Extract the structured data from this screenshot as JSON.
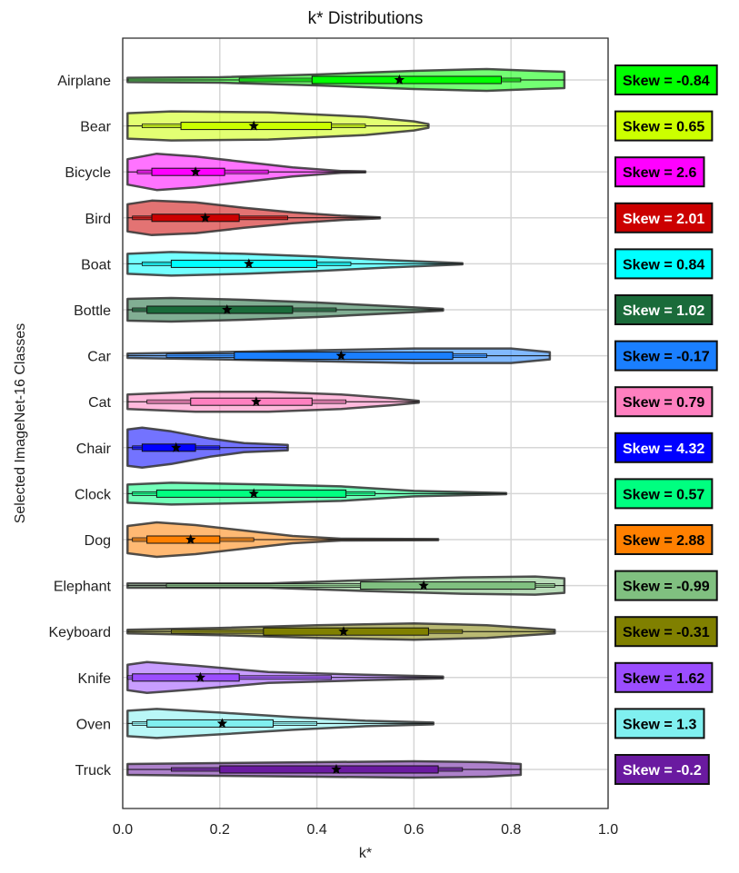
{
  "chart_data": {
    "type": "violin",
    "title": "k* Distributions",
    "xlabel": "k*",
    "ylabel": "Selected ImageNet-16 Classes",
    "xlim": [
      0.0,
      1.0
    ],
    "xticks": [
      "0.0",
      "0.2",
      "0.4",
      "0.6",
      "0.8",
      "1.0"
    ],
    "grid": true,
    "mean_marker": "star",
    "classes": [
      {
        "name": "Airplane",
        "color": "#00ff00",
        "text_color": "#000000",
        "skew_label": "Skew = -0.84",
        "min": 0.01,
        "whisker_low": 0.24,
        "q1": 0.39,
        "q3": 0.78,
        "whisker_high": 0.82,
        "max": 0.91,
        "mean": 0.57,
        "density": [
          [
            0.01,
            0.12
          ],
          [
            0.2,
            0.15
          ],
          [
            0.4,
            0.3
          ],
          [
            0.6,
            0.5
          ],
          [
            0.75,
            0.6
          ],
          [
            0.85,
            0.5
          ],
          [
            0.91,
            0.45
          ]
        ]
      },
      {
        "name": "Bear",
        "color": "#ccff00",
        "text_color": "#000000",
        "skew_label": "Skew = 0.65",
        "min": 0.01,
        "whisker_low": 0.04,
        "q1": 0.12,
        "q3": 0.43,
        "whisker_high": 0.5,
        "max": 0.63,
        "mean": 0.27,
        "density": [
          [
            0.01,
            0.7
          ],
          [
            0.1,
            0.8
          ],
          [
            0.3,
            0.75
          ],
          [
            0.5,
            0.5
          ],
          [
            0.6,
            0.25
          ],
          [
            0.63,
            0.1
          ]
        ]
      },
      {
        "name": "Bicycle",
        "color": "#ff00ff",
        "text_color": "#000000",
        "skew_label": "Skew = 2.6",
        "min": 0.01,
        "whisker_low": 0.03,
        "q1": 0.06,
        "q3": 0.21,
        "whisker_high": 0.3,
        "max": 0.5,
        "mean": 0.15,
        "density": [
          [
            0.01,
            0.7
          ],
          [
            0.07,
            1.0
          ],
          [
            0.15,
            0.85
          ],
          [
            0.25,
            0.55
          ],
          [
            0.35,
            0.25
          ],
          [
            0.45,
            0.05
          ],
          [
            0.5,
            0.03
          ]
        ]
      },
      {
        "name": "Bird",
        "color": "#cc0000",
        "text_color": "#ffffff",
        "skew_label": "Skew = 2.01",
        "min": 0.01,
        "whisker_low": 0.02,
        "q1": 0.06,
        "q3": 0.24,
        "whisker_high": 0.34,
        "max": 0.53,
        "mean": 0.17,
        "density": [
          [
            0.01,
            0.75
          ],
          [
            0.06,
            0.95
          ],
          [
            0.15,
            0.85
          ],
          [
            0.25,
            0.55
          ],
          [
            0.35,
            0.3
          ],
          [
            0.45,
            0.12
          ],
          [
            0.53,
            0.03
          ]
        ]
      },
      {
        "name": "Boat",
        "color": "#00ffff",
        "text_color": "#000000",
        "skew_label": "Skew = 0.84",
        "min": 0.01,
        "whisker_low": 0.04,
        "q1": 0.1,
        "q3": 0.4,
        "whisker_high": 0.47,
        "max": 0.7,
        "mean": 0.26,
        "density": [
          [
            0.01,
            0.55
          ],
          [
            0.1,
            0.65
          ],
          [
            0.25,
            0.55
          ],
          [
            0.4,
            0.4
          ],
          [
            0.55,
            0.2
          ],
          [
            0.7,
            0.03
          ]
        ]
      },
      {
        "name": "Bottle",
        "color": "#1a6b3a",
        "text_color": "#ffffff",
        "skew_label": "Skew = 1.02",
        "min": 0.01,
        "whisker_low": 0.02,
        "q1": 0.05,
        "q3": 0.35,
        "whisker_high": 0.44,
        "max": 0.66,
        "mean": 0.215,
        "density": [
          [
            0.01,
            0.6
          ],
          [
            0.1,
            0.65
          ],
          [
            0.25,
            0.55
          ],
          [
            0.4,
            0.4
          ],
          [
            0.55,
            0.2
          ],
          [
            0.66,
            0.05
          ]
        ]
      },
      {
        "name": "Car",
        "color": "#1a7fff",
        "text_color": "#000000",
        "skew_label": "Skew = -0.17",
        "min": 0.01,
        "whisker_low": 0.09,
        "q1": 0.23,
        "q3": 0.68,
        "whisker_high": 0.75,
        "max": 0.88,
        "mean": 0.45,
        "density": [
          [
            0.01,
            0.12
          ],
          [
            0.2,
            0.2
          ],
          [
            0.4,
            0.3
          ],
          [
            0.6,
            0.4
          ],
          [
            0.8,
            0.4
          ],
          [
            0.88,
            0.2
          ]
        ]
      },
      {
        "name": "Cat",
        "color": "#ff80c0",
        "text_color": "#000000",
        "skew_label": "Skew = 0.79",
        "min": 0.01,
        "whisker_low": 0.05,
        "q1": 0.14,
        "q3": 0.39,
        "whisker_high": 0.46,
        "max": 0.61,
        "mean": 0.275,
        "density": [
          [
            0.01,
            0.4
          ],
          [
            0.15,
            0.55
          ],
          [
            0.3,
            0.55
          ],
          [
            0.45,
            0.4
          ],
          [
            0.55,
            0.2
          ],
          [
            0.61,
            0.05
          ]
        ]
      },
      {
        "name": "Chair",
        "color": "#0000ff",
        "text_color": "#ffffff",
        "skew_label": "Skew = 4.32",
        "min": 0.01,
        "whisker_low": 0.02,
        "q1": 0.04,
        "q3": 0.15,
        "whisker_high": 0.2,
        "max": 0.34,
        "mean": 0.11,
        "density": [
          [
            0.01,
            1.0
          ],
          [
            0.04,
            1.1
          ],
          [
            0.1,
            0.9
          ],
          [
            0.18,
            0.5
          ],
          [
            0.25,
            0.25
          ],
          [
            0.34,
            0.15
          ]
        ]
      },
      {
        "name": "Clock",
        "color": "#00ff80",
        "text_color": "#000000",
        "skew_label": "Skew = 0.57",
        "min": 0.01,
        "whisker_low": 0.02,
        "q1": 0.07,
        "q3": 0.46,
        "whisker_high": 0.52,
        "max": 0.79,
        "mean": 0.27,
        "density": [
          [
            0.01,
            0.5
          ],
          [
            0.1,
            0.6
          ],
          [
            0.3,
            0.5
          ],
          [
            0.45,
            0.4
          ],
          [
            0.6,
            0.15
          ],
          [
            0.79,
            0.03
          ]
        ]
      },
      {
        "name": "Dog",
        "color": "#ff8000",
        "text_color": "#000000",
        "skew_label": "Skew = 2.88",
        "min": 0.01,
        "whisker_low": 0.02,
        "q1": 0.05,
        "q3": 0.2,
        "whisker_high": 0.27,
        "max": 0.65,
        "mean": 0.14,
        "density": [
          [
            0.01,
            0.75
          ],
          [
            0.07,
            0.95
          ],
          [
            0.15,
            0.8
          ],
          [
            0.25,
            0.5
          ],
          [
            0.35,
            0.2
          ],
          [
            0.45,
            0.05
          ],
          [
            0.65,
            0.03
          ]
        ]
      },
      {
        "name": "Elephant",
        "color": "#80c080",
        "text_color": "#000000",
        "skew_label": "Skew = -0.99",
        "min": 0.01,
        "whisker_low": 0.09,
        "q1": 0.49,
        "q3": 0.85,
        "whisker_high": 0.89,
        "max": 0.91,
        "mean": 0.62,
        "density": [
          [
            0.01,
            0.12
          ],
          [
            0.3,
            0.12
          ],
          [
            0.5,
            0.3
          ],
          [
            0.7,
            0.45
          ],
          [
            0.85,
            0.5
          ],
          [
            0.91,
            0.4
          ]
        ]
      },
      {
        "name": "Keyboard",
        "color": "#808000",
        "text_color": "#000000",
        "skew_label": "Skew = -0.31",
        "min": 0.01,
        "whisker_low": 0.1,
        "q1": 0.29,
        "q3": 0.63,
        "whisker_high": 0.7,
        "max": 0.89,
        "mean": 0.455,
        "density": [
          [
            0.01,
            0.1
          ],
          [
            0.2,
            0.2
          ],
          [
            0.4,
            0.35
          ],
          [
            0.6,
            0.45
          ],
          [
            0.75,
            0.35
          ],
          [
            0.89,
            0.1
          ]
        ]
      },
      {
        "name": "Knife",
        "color": "#9b4dff",
        "text_color": "#000000",
        "skew_label": "Skew = 1.62",
        "min": 0.01,
        "whisker_low": 0.01,
        "q1": 0.02,
        "q3": 0.24,
        "whisker_high": 0.43,
        "max": 0.66,
        "mean": 0.16,
        "density": [
          [
            0.01,
            0.7
          ],
          [
            0.05,
            0.85
          ],
          [
            0.15,
            0.65
          ],
          [
            0.3,
            0.3
          ],
          [
            0.5,
            0.15
          ],
          [
            0.66,
            0.05
          ]
        ]
      },
      {
        "name": "Oven",
        "color": "#80f0f0",
        "text_color": "#000000",
        "skew_label": "Skew = 1.3",
        "min": 0.01,
        "whisker_low": 0.02,
        "q1": 0.05,
        "q3": 0.31,
        "whisker_high": 0.4,
        "max": 0.64,
        "mean": 0.205,
        "density": [
          [
            0.01,
            0.7
          ],
          [
            0.07,
            0.8
          ],
          [
            0.2,
            0.6
          ],
          [
            0.35,
            0.35
          ],
          [
            0.5,
            0.15
          ],
          [
            0.64,
            0.05
          ]
        ]
      },
      {
        "name": "Truck",
        "color": "#6a1aa0",
        "text_color": "#ffffff",
        "skew_label": "Skew = -0.2",
        "min": 0.01,
        "whisker_low": 0.1,
        "q1": 0.2,
        "q3": 0.65,
        "whisker_high": 0.7,
        "max": 0.82,
        "mean": 0.44,
        "density": [
          [
            0.01,
            0.3
          ],
          [
            0.2,
            0.35
          ],
          [
            0.4,
            0.4
          ],
          [
            0.6,
            0.45
          ],
          [
            0.75,
            0.4
          ],
          [
            0.82,
            0.3
          ]
        ]
      }
    ]
  }
}
